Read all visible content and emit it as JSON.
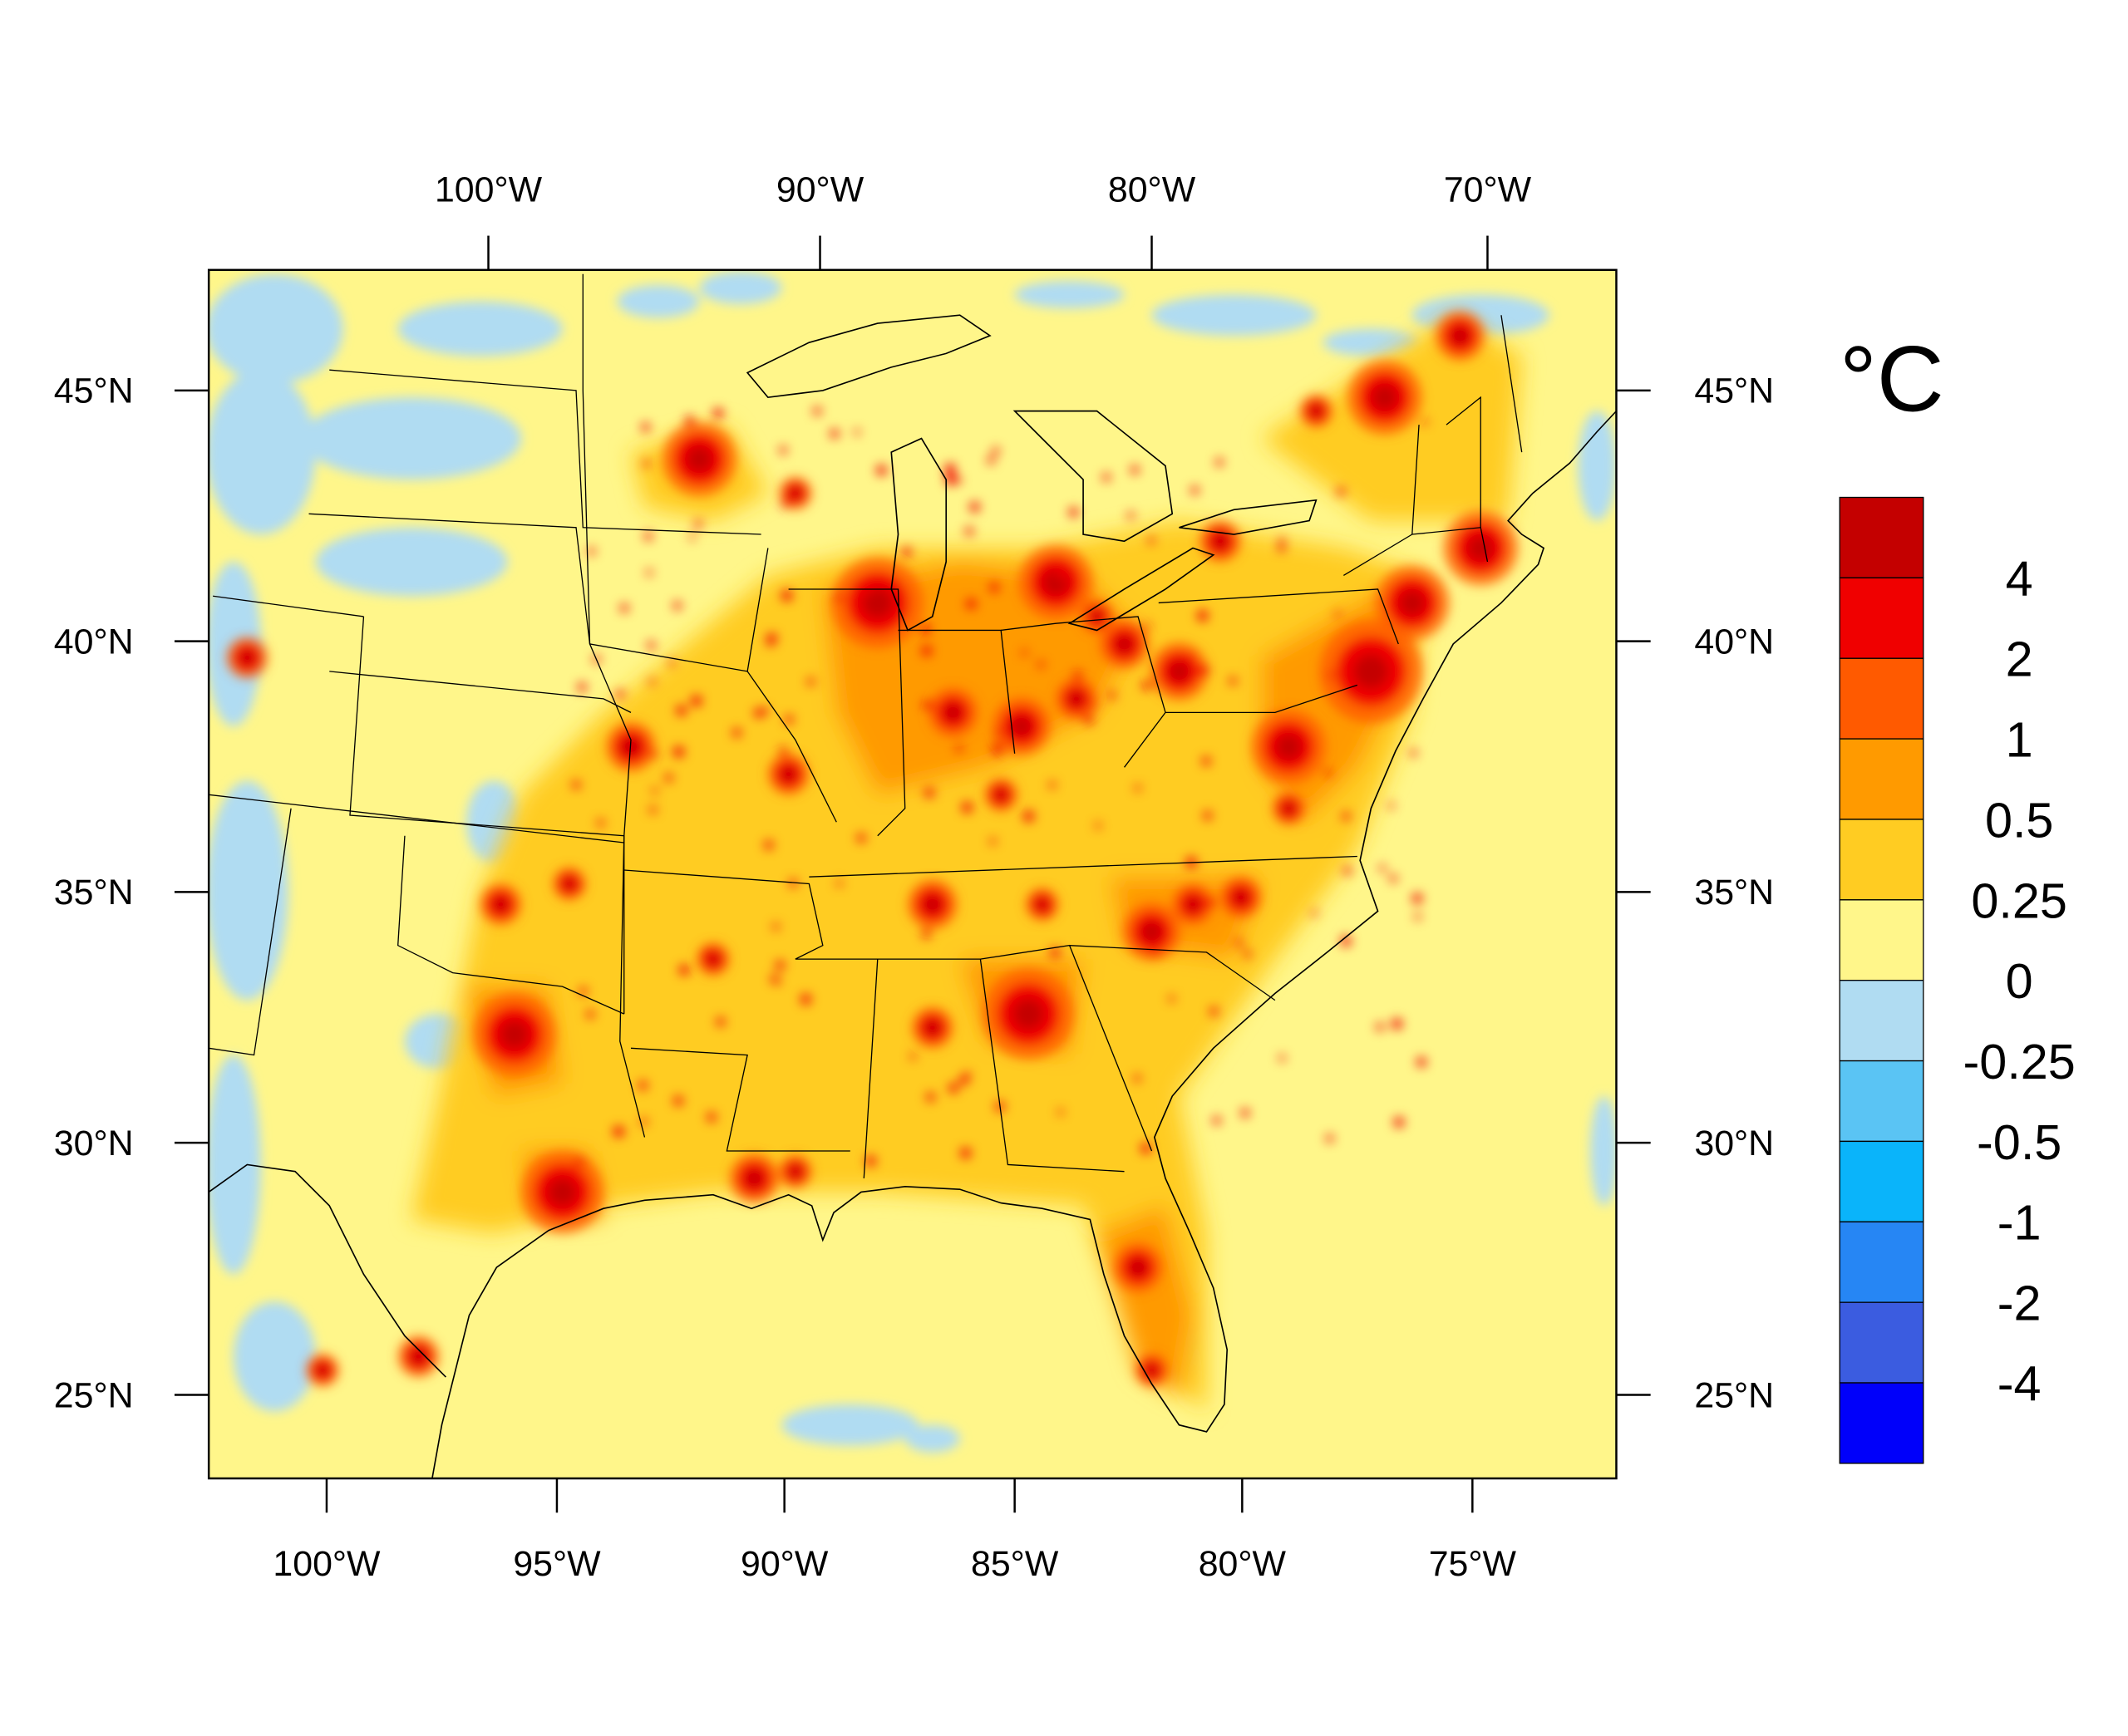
{
  "map": {
    "units_label": "°C",
    "top_lon_labels": [
      "100°W",
      "90°W",
      "80°W",
      "70°W"
    ],
    "bottom_lon_labels": [
      "100°W",
      "95°W",
      "90°W",
      "85°W",
      "80°W",
      "75°W"
    ],
    "left_lat_labels": [
      "45°N",
      "40°N",
      "35°N",
      "30°N",
      "25°N"
    ],
    "right_lat_labels": [
      "45°N",
      "40°N",
      "35°N",
      "30°N",
      "25°N"
    ],
    "background_level_color": "#FFF68A"
  },
  "colorbar": {
    "labels": [
      "4",
      "2",
      "1",
      "0.5",
      "0.25",
      "0",
      "-0.25",
      "-0.5",
      "-1",
      "-2",
      "-4"
    ],
    "colors": [
      "#C40000",
      "#F00000",
      "#FF5A00",
      "#FF9A00",
      "#FFCC22",
      "#FFF68A",
      "#B0DCF2",
      "#5AC4F4",
      "#0AB4FA",
      "#2686F4",
      "#3B5CE0",
      "#0000FA"
    ]
  }
}
